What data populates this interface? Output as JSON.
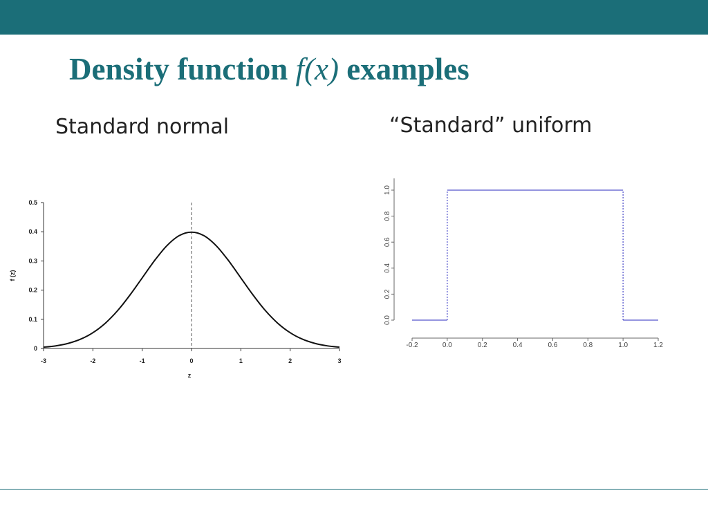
{
  "slide": {
    "title_prefix": "Density function ",
    "title_fx": "f(x)",
    "title_suffix": " examples",
    "caption_left": "Standard normal",
    "caption_right": "“Standard” uniform"
  },
  "colors": {
    "accent": "#1b6e78",
    "uniform_line": "#5555cc"
  },
  "chart_data": [
    {
      "type": "line",
      "title": "",
      "xlabel": "z",
      "ylabel": "f (z)",
      "xlim": [
        -3,
        3
      ],
      "ylim": [
        0,
        0.5
      ],
      "xticks": [
        "-3",
        "-2",
        "-1",
        "0",
        "1",
        "2",
        "3"
      ],
      "yticks": [
        "0",
        "0.1",
        "0.2",
        "0.3",
        "0.4",
        "0.5"
      ],
      "annotations": [
        {
          "type": "vertical-dashed-line",
          "x": 0
        }
      ],
      "series": [
        {
          "x": [
            -3,
            -2.75,
            -2.5,
            -2.25,
            -2,
            -1.75,
            -1.5,
            -1.25,
            -1,
            -0.75,
            -0.5,
            -0.25,
            0,
            0.25,
            0.5,
            0.75,
            1,
            1.25,
            1.5,
            1.75,
            2,
            2.25,
            2.5,
            2.75,
            3
          ],
          "y": [
            0.0044,
            0.0091,
            0.0175,
            0.0317,
            0.054,
            0.0863,
            0.1295,
            0.1826,
            0.242,
            0.3011,
            0.3521,
            0.3867,
            0.3989,
            0.3867,
            0.3521,
            0.3011,
            0.242,
            0.1826,
            0.1295,
            0.0863,
            0.054,
            0.0317,
            0.0175,
            0.0091,
            0.0044
          ]
        }
      ]
    },
    {
      "type": "line",
      "title": "",
      "xlabel": "",
      "ylabel": "",
      "xlim": [
        -0.2,
        1.2
      ],
      "ylim": [
        0,
        1
      ],
      "xticks": [
        "-0.2",
        "0.0",
        "0.2",
        "0.4",
        "0.6",
        "0.8",
        "1.0",
        "1.2"
      ],
      "yticks": [
        "0.0",
        "0.2",
        "0.4",
        "0.6",
        "0.8",
        "1.0"
      ],
      "annotations": [
        {
          "type": "vertical-dotted-line",
          "x": 0
        },
        {
          "type": "vertical-dotted-line",
          "x": 1
        }
      ],
      "series": [
        {
          "segments": [
            {
              "x": [
                -0.2,
                0
              ],
              "y": [
                0,
                0
              ]
            },
            {
              "x": [
                0,
                1
              ],
              "y": [
                1,
                1
              ]
            },
            {
              "x": [
                1,
                1.2
              ],
              "y": [
                0,
                0
              ]
            }
          ]
        }
      ]
    }
  ]
}
